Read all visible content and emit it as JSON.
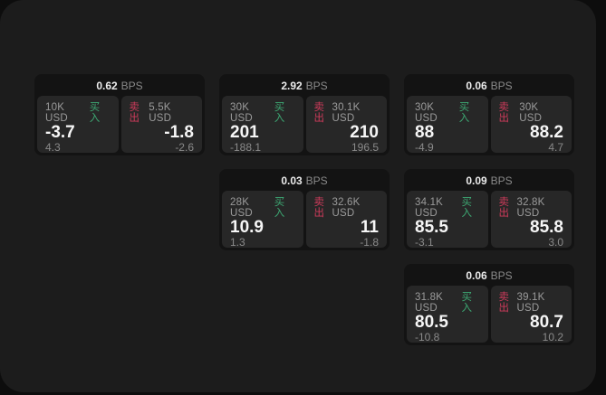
{
  "labels": {
    "bps_suffix": "BPS",
    "buy_label": "买入",
    "sell_label": "卖出"
  },
  "colors": {
    "panel_bg": "#1c1c1c",
    "card_bg": "#131313",
    "tile_bg": "#272727",
    "buy_green": "#3da873",
    "sell_red": "#ce3b5b",
    "text_primary": "#f6f6f6",
    "text_muted": "#8a8a8a"
  },
  "cards": [
    {
      "bps": "0.62",
      "buy": {
        "amount": "10K USD",
        "price": "-3.7",
        "delta": "4.3"
      },
      "sell": {
        "amount": "5.5K USD",
        "price": "-1.8",
        "delta": "-2.6"
      }
    },
    {
      "bps": "2.92",
      "buy": {
        "amount": "30K USD",
        "price": "201",
        "delta": "-188.1"
      },
      "sell": {
        "amount": "30.1K USD",
        "price": "210",
        "delta": "196.5"
      }
    },
    {
      "bps": "0.06",
      "buy": {
        "amount": "30K USD",
        "price": "88",
        "delta": "-4.9"
      },
      "sell": {
        "amount": "30K USD",
        "price": "88.2",
        "delta": "4.7"
      }
    },
    {
      "bps": "0.03",
      "buy": {
        "amount": "28K USD",
        "price": "10.9",
        "delta": "1.3"
      },
      "sell": {
        "amount": "32.6K USD",
        "price": "11",
        "delta": "-1.8"
      }
    },
    {
      "bps": "0.09",
      "buy": {
        "amount": "34.1K USD",
        "price": "85.5",
        "delta": "-3.1"
      },
      "sell": {
        "amount": "32.8K USD",
        "price": "85.8",
        "delta": "3.0"
      }
    },
    {
      "bps": "0.06",
      "buy": {
        "amount": "31.8K USD",
        "price": "80.5",
        "delta": "-10.8"
      },
      "sell": {
        "amount": "39.1K USD",
        "price": "80.7",
        "delta": "10.2"
      }
    }
  ]
}
